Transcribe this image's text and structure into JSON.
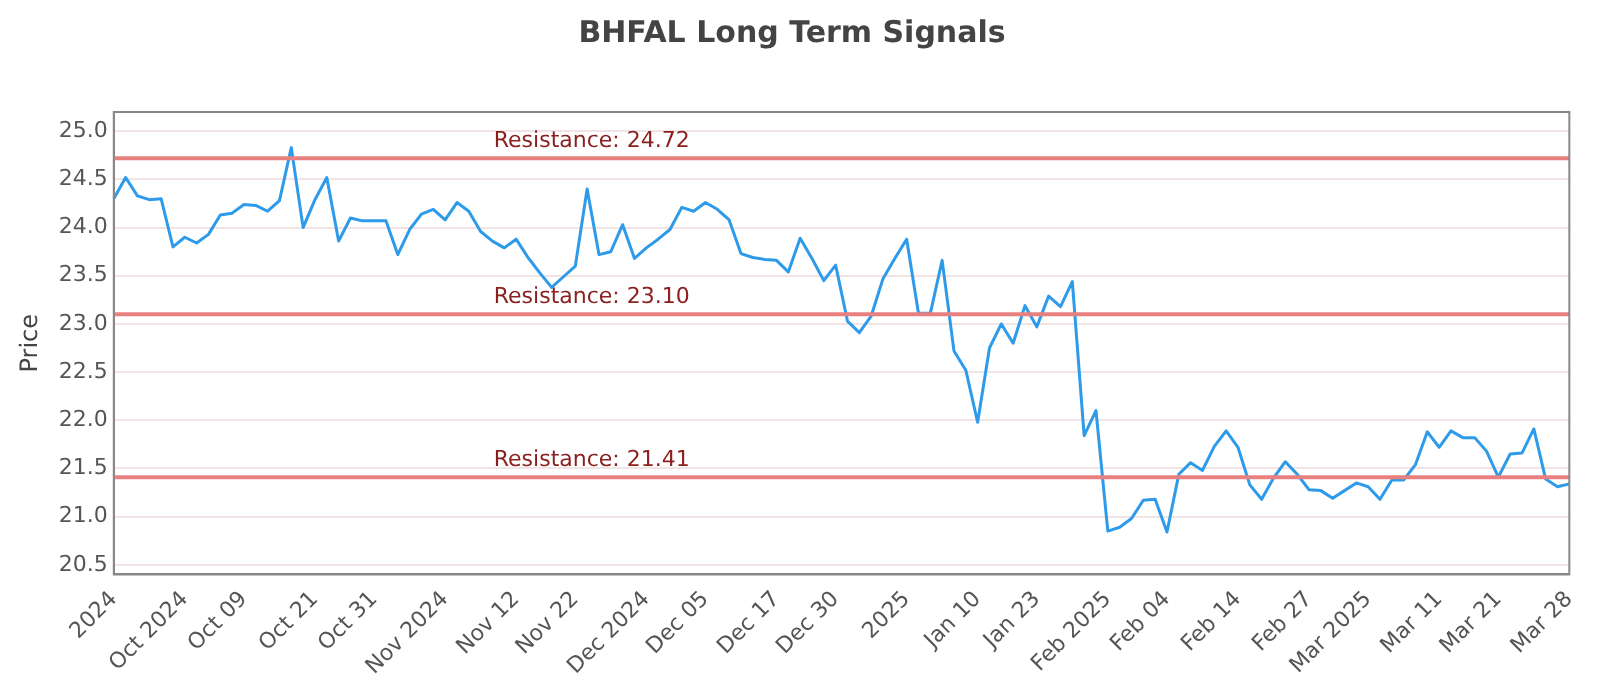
{
  "chart_data": {
    "type": "line",
    "title": "BHFAL Long Term Signals",
    "ylabel": "Price",
    "categories": [
      "2024",
      null,
      null,
      null,
      null,
      null,
      "Oct 2024",
      null,
      null,
      null,
      null,
      "Oct 09",
      null,
      null,
      null,
      null,
      null,
      "Oct 21",
      null,
      null,
      null,
      null,
      "Oct 31",
      null,
      null,
      null,
      null,
      null,
      "Nov 2024",
      null,
      null,
      null,
      null,
      null,
      "Nov 12",
      null,
      null,
      null,
      null,
      "Nov 22",
      null,
      null,
      null,
      null,
      null,
      "Dec 2024",
      null,
      null,
      null,
      null,
      "Dec 05",
      null,
      null,
      null,
      null,
      null,
      "Dec 17",
      null,
      null,
      null,
      null,
      "Dec 30",
      null,
      null,
      null,
      null,
      null,
      "2025",
      null,
      null,
      null,
      null,
      null,
      "Jan 10",
      null,
      null,
      null,
      null,
      "Jan 23",
      null,
      null,
      null,
      null,
      null,
      "Feb 2025",
      null,
      null,
      null,
      null,
      "Feb 04",
      null,
      null,
      null,
      null,
      null,
      "Feb 14",
      null,
      null,
      null,
      null,
      null,
      "Feb 27",
      null,
      null,
      null,
      null,
      "Mar 2025",
      null,
      null,
      null,
      null,
      null,
      "Mar 11",
      null,
      null,
      null,
      null,
      "Mar 21",
      null,
      null,
      null,
      null,
      null,
      "Mar 28"
    ],
    "series": [
      {
        "color": "#2e9bea",
        "values": [
          24.3,
          24.52,
          24.33,
          24.29,
          24.3,
          23.8,
          23.9,
          23.84,
          23.93,
          24.13,
          24.15,
          24.24,
          24.23,
          24.17,
          24.28,
          24.83,
          24.0,
          24.29,
          24.52,
          23.86,
          24.1,
          24.07,
          24.07,
          24.07,
          23.72,
          23.98,
          24.14,
          24.19,
          24.08,
          24.26,
          24.17,
          23.96,
          23.86,
          23.79,
          23.88,
          23.69,
          23.53,
          23.38,
          23.49,
          23.6,
          24.4,
          23.72,
          23.75,
          24.03,
          23.68,
          23.79,
          23.88,
          23.98,
          24.21,
          24.17,
          24.26,
          24.19,
          24.08,
          23.73,
          23.69,
          23.67,
          23.66,
          23.54,
          23.89,
          23.68,
          23.45,
          23.61,
          23.03,
          22.91,
          23.08,
          23.47,
          23.68,
          23.88,
          23.11,
          23.11,
          23.66,
          22.72,
          22.52,
          21.98,
          22.75,
          23.0,
          22.8,
          23.19,
          22.97,
          23.29,
          23.18,
          23.44,
          21.84,
          22.1,
          20.85,
          20.89,
          20.98,
          21.17,
          21.18,
          20.84,
          21.44,
          21.56,
          21.48,
          21.73,
          21.89,
          21.72,
          21.33,
          21.18,
          21.4,
          21.57,
          21.44,
          21.28,
          21.27,
          21.19,
          21.27,
          21.35,
          21.31,
          21.18,
          21.38,
          21.38,
          21.54,
          21.88,
          21.72,
          21.89,
          21.82,
          21.82,
          21.68,
          21.41,
          21.65,
          21.66,
          21.91,
          21.39,
          21.31,
          21.34
        ]
      }
    ],
    "ylim": [
      20.4,
      25.2
    ],
    "yticks": [
      {
        "value": 20.5,
        "label": "20.5"
      },
      {
        "value": 21,
        "label": "21.0"
      },
      {
        "value": 21.5,
        "label": "21.5"
      },
      {
        "value": 22,
        "label": "22.0"
      },
      {
        "value": 22.5,
        "label": "22.5"
      },
      {
        "value": 23,
        "label": "23.0"
      },
      {
        "value": 23.5,
        "label": "23.5"
      },
      {
        "value": 24,
        "label": "24.0"
      },
      {
        "value": 24.5,
        "label": "24.5"
      },
      {
        "value": 25,
        "label": "25.0"
      }
    ],
    "ref_lines": [
      {
        "axis": "y",
        "value": 24.72,
        "label": "Resistance: 24.72",
        "color": "#e88080"
      },
      {
        "axis": "y",
        "value": 23.1,
        "label": "Resistance: 23.10",
        "color": "#e88080"
      },
      {
        "axis": "y",
        "value": 21.41,
        "label": "Resistance: 21.41",
        "color": "#e88080"
      }
    ],
    "grid": "y",
    "legend": false,
    "marker": "none",
    "line_style": "solid"
  }
}
